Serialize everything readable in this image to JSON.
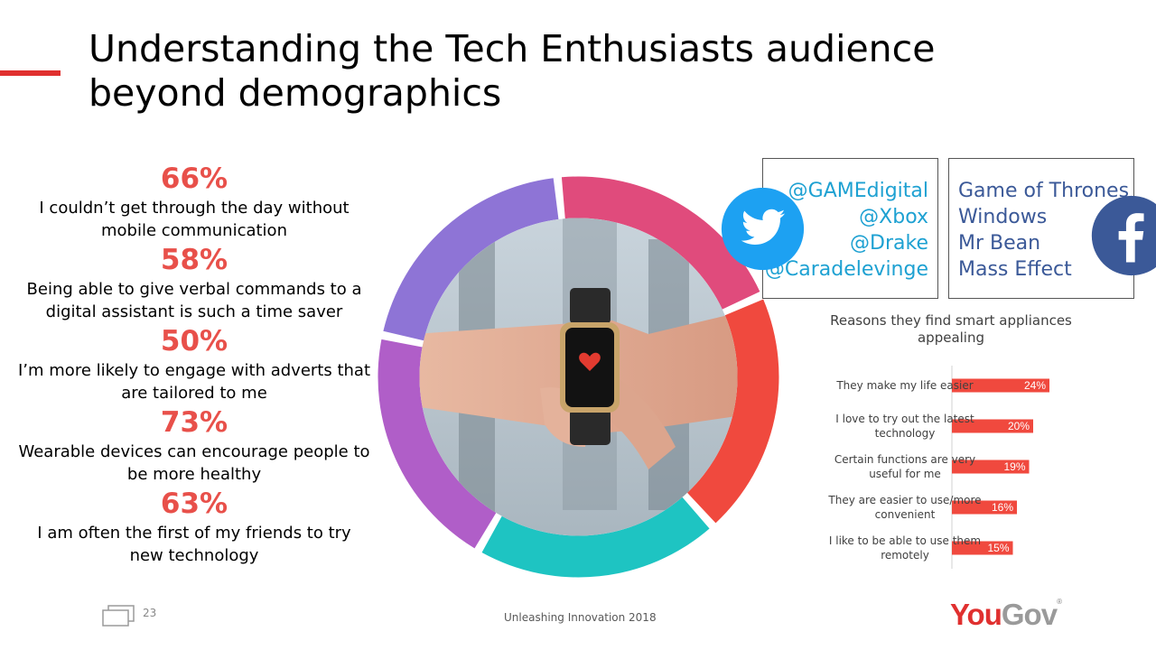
{
  "slide": {
    "title_line1": "Understanding the Tech Enthusiasts audience",
    "title_line2": "beyond demographics",
    "page_number": "23",
    "footer": "Unleashing Innovation 2018",
    "logo": {
      "you": "You",
      "gov": "Gov",
      "reg": "®"
    }
  },
  "stats": [
    {
      "pct": "66%",
      "line1": "I couldn’t get through the day without",
      "line2": "mobile communication"
    },
    {
      "pct": "58%",
      "line1": "Being able to give verbal commands  to a",
      "line2": "digital assistant is such a time saver"
    },
    {
      "pct": "50%",
      "line1": "I’m more likely to engage with adverts that",
      "line2": "are tailored to me"
    },
    {
      "pct": "73%",
      "line1": "Wearable devices can encourage  people to",
      "line2": "be more healthy"
    },
    {
      "pct": "63%",
      "line1": "I am often the first of my friends to try",
      "line2": "new technology"
    }
  ],
  "donut": {
    "segments": [
      {
        "color": "#e04b7c",
        "value": 1
      },
      {
        "color": "#f0493e",
        "value": 1
      },
      {
        "color": "#1ec4c2",
        "value": 1
      },
      {
        "color": "#b05ec8",
        "value": 1
      },
      {
        "color": "#8e74d6",
        "value": 1
      }
    ],
    "center_image": "smartwatch-photo"
  },
  "twitter": {
    "icon": "twitter-bird-icon",
    "color": "#1ea1d2",
    "handles": [
      "@GAMEdigital",
      "@Xbox",
      "@Drake",
      "@Caradelevinge"
    ]
  },
  "facebook": {
    "icon": "facebook-f-icon",
    "color": "#3b5998",
    "pages": [
      "Game of Thrones",
      "Windows",
      "Mr Bean",
      "Mass Effect"
    ]
  },
  "chart_data": {
    "type": "bar",
    "orientation": "horizontal",
    "title": "Reasons they find smart appliances appealing",
    "categories": [
      "They make my life easier",
      "I love to try out the latest technology",
      "Certain functions are very useful for me",
      "They are easier to use/more convenient",
      "I like to be able to use them remotely"
    ],
    "category_lines": [
      [
        "They make my life easier"
      ],
      [
        "I love to try out the latest",
        "technology"
      ],
      [
        "Certain functions are very",
        "useful for me"
      ],
      [
        "They are easier to use/more",
        "convenient"
      ],
      [
        "I like to be able to use them",
        "remotely"
      ]
    ],
    "values": [
      24,
      20,
      19,
      16,
      15
    ],
    "labels": [
      "24%",
      "20%",
      "19%",
      "16%",
      "15%"
    ],
    "bar_color": "#f0493e",
    "xlim": [
      0,
      40
    ],
    "grid": false,
    "legend": "none"
  }
}
